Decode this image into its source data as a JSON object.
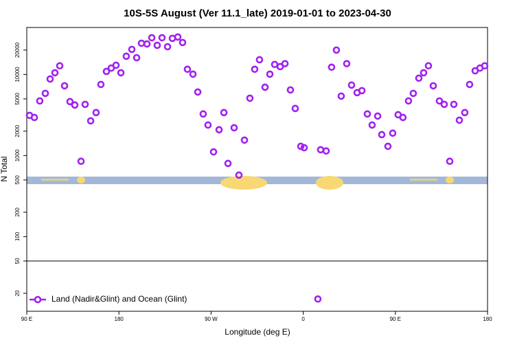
{
  "chart_data": {
    "type": "scatter",
    "title": "10S-5S August (Ver 11.1_late)   2019-01-01 to 2023-04-30",
    "x_label": "Longitude (deg E)",
    "y_label": "N Total",
    "xlim": [
      90,
      540
    ],
    "xticks": [
      {
        "value": 90,
        "label": "90 E"
      },
      180,
      {
        "value": 270,
        "label": "90 W"
      },
      {
        "value": 360,
        "label": "0"
      },
      {
        "value": 450,
        "label": "90 E"
      },
      {
        "value": 540,
        "label": "180"
      }
    ],
    "ylim": [
      12,
      38000
    ],
    "yscale": "log",
    "yticks": [
      20,
      50,
      100,
      200,
      500,
      1000,
      2000,
      5000,
      10000,
      20000
    ],
    "hline": 50,
    "legend": "bottom-left",
    "x": [
      92.7,
      97.4,
      102.7,
      108.1,
      112.8,
      117.5,
      122.2,
      126.9,
      132.2,
      136.9,
      143.0,
      147.0,
      152.4,
      157.7,
      162.4,
      167.8,
      172.5,
      177.2,
      181.9,
      187.2,
      192.6,
      197.3,
      202.0,
      207.4,
      212.1,
      217.4,
      222.1,
      227.5,
      232.2,
      237.5,
      242.2,
      246.9,
      252.3,
      257.0,
      262.3,
      267.0,
      272.4,
      277.8,
      282.5,
      286.5,
      292.5,
      297.2,
      302.6,
      307.9,
      312.6,
      317.3,
      322.7,
      327.4,
      332.1,
      337.5,
      342.2,
      347.5,
      352.2,
      357.6,
      360.9,
      377.0,
      382.4,
      374.3,
      387.7,
      392.4,
      397.1,
      402.5,
      407.2,
      412.6,
      417.3,
      422.6,
      427.3,
      432.7,
      436.7,
      442.7,
      447.4,
      452.7,
      457.4,
      462.8,
      467.5,
      472.9,
      477.6,
      482.3,
      487.0,
      493.0,
      497.7,
      503.1,
      507.1,
      512.5,
      517.8,
      522.5,
      527.9,
      532.6,
      537.3
    ],
    "series": [
      {
        "name": "Land (Nadir&Glint) and Ocean (Glint)",
        "color": "#a020f0",
        "values": [
          3130,
          2950,
          4720,
          5850,
          8800,
          10500,
          12800,
          7250,
          4630,
          4200,
          850,
          4280,
          2680,
          3390,
          7530,
          10900,
          12000,
          13000,
          10500,
          16800,
          20400,
          16100,
          24300,
          23800,
          28400,
          22900,
          28400,
          22000,
          27900,
          29000,
          24800,
          11600,
          10100,
          6080,
          3260,
          2380,
          1110,
          2080,
          3390,
          800,
          2200,
          574,
          1550,
          5100,
          11600,
          15200,
          6970,
          10100,
          13300,
          12500,
          13600,
          6450,
          3810,
          1300,
          1250,
          1180,
          1140,
          17,
          12300,
          20000,
          5410,
          13600,
          7400,
          5970,
          6320,
          3260,
          2380,
          3070,
          1810,
          1300,
          1890,
          3190,
          2950,
          4720,
          5850,
          9000,
          10500,
          12800,
          7250,
          4720,
          4280,
          850,
          4280,
          2730,
          3390,
          7530,
          11100,
          12000,
          12800
        ]
      }
    ]
  }
}
